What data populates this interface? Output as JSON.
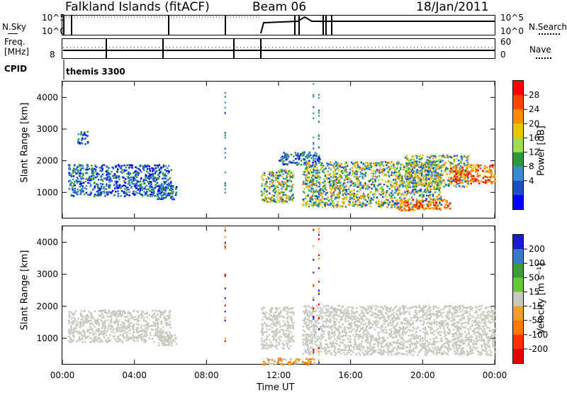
{
  "header": {
    "radar": "Falkland Islands (fitACF)",
    "beam": "Beam 06",
    "date": "18/Jan/2011"
  },
  "top_panels": {
    "nsky_label": "N.Sky",
    "nsearch_label": "N.Search",
    "noise_ticks": [
      "10^5",
      "10^0"
    ],
    "freq_label_top": "Freq.",
    "freq_label_unit": "[MHz]",
    "freq_ticks_left": [
      "8"
    ],
    "nave_label": "Nave",
    "nave_ticks": [
      "60",
      "0"
    ],
    "cpid_label": "CPID",
    "cpid_value": "themis 3300"
  },
  "chart_data": [
    {
      "type": "heatmap",
      "name": "power",
      "ylabel": "Slant Range [km]",
      "xlabel": "",
      "x_ticks": [
        "00:00",
        "04:00",
        "08:00",
        "12:00",
        "16:00",
        "20:00",
        "00:00"
      ],
      "xlim_hours": [
        0,
        24
      ],
      "ylim": [
        200,
        4500
      ],
      "y_ticks": [
        1000,
        2000,
        3000,
        4000
      ],
      "colorbar": {
        "label": "Power [dB]",
        "ticks": [
          "28",
          "24",
          "20",
          "16",
          "12",
          "8",
          "4"
        ],
        "colors": [
          "#ff0000",
          "#ff4400",
          "#ff8c00",
          "#e6c800",
          "#a0dc50",
          "#2a9a3c",
          "#3c8cd2",
          "#1e50c8",
          "#0000ff"
        ]
      },
      "regions": [
        {
          "t0": 0.3,
          "t1": 6.0,
          "r0": 900,
          "r1": 1900,
          "level": "low"
        },
        {
          "t0": 0.8,
          "t1": 1.4,
          "r0": 2550,
          "r1": 2950,
          "level": "low"
        },
        {
          "t0": 5.2,
          "t1": 6.3,
          "r0": 800,
          "r1": 1250,
          "level": "low"
        },
        {
          "t0": 11.0,
          "t1": 12.8,
          "r0": 700,
          "r1": 1750,
          "level": "mid"
        },
        {
          "t0": 12.0,
          "t1": 14.3,
          "r0": 1900,
          "r1": 2300,
          "level": "low"
        },
        {
          "t0": 13.3,
          "t1": 21.0,
          "r0": 550,
          "r1": 2000,
          "level": "mid"
        },
        {
          "t0": 19.0,
          "t1": 22.5,
          "r0": 1200,
          "r1": 2200,
          "level": "mid"
        },
        {
          "t0": 21.5,
          "t1": 24.0,
          "r0": 1300,
          "r1": 1900,
          "level": "high"
        },
        {
          "t0": 18.5,
          "t1": 21.5,
          "r0": 450,
          "r1": 800,
          "level": "high"
        }
      ]
    },
    {
      "type": "heatmap",
      "name": "velocity",
      "ylabel": "Slant Range [km]",
      "xlabel": "Time UT",
      "x_ticks": [
        "00:00",
        "04:00",
        "08:00",
        "12:00",
        "16:00",
        "20:00",
        "00:00"
      ],
      "xlim_hours": [
        0,
        24
      ],
      "ylim": [
        200,
        4500
      ],
      "y_ticks": [
        1000,
        2000,
        3000,
        4000
      ],
      "colorbar": {
        "label": "Velocity [m s⁻¹]",
        "ticks": [
          "200",
          "100",
          "50",
          "15",
          "-15",
          "-50",
          "-100",
          "-200"
        ],
        "colors": [
          "#1a1ad2",
          "#3c78c8",
          "#3c9a3c",
          "#64c832",
          "#c8c8c0",
          "#f0a028",
          "#ff7800",
          "#ff3000",
          "#e60000"
        ]
      },
      "regions": [
        {
          "t0": 0.3,
          "t1": 6.0,
          "r0": 900,
          "r1": 1900,
          "level": "gray"
        },
        {
          "t0": 5.2,
          "t1": 6.3,
          "r0": 800,
          "r1": 1250,
          "level": "gray"
        },
        {
          "t0": 11.0,
          "t1": 12.8,
          "r0": 700,
          "r1": 2000,
          "level": "gray"
        },
        {
          "t0": 13.3,
          "t1": 24.0,
          "r0": 500,
          "r1": 2050,
          "level": "gray"
        },
        {
          "t0": 11.0,
          "t1": 14.0,
          "r0": 200,
          "r1": 400,
          "level": "orange"
        }
      ]
    }
  ]
}
